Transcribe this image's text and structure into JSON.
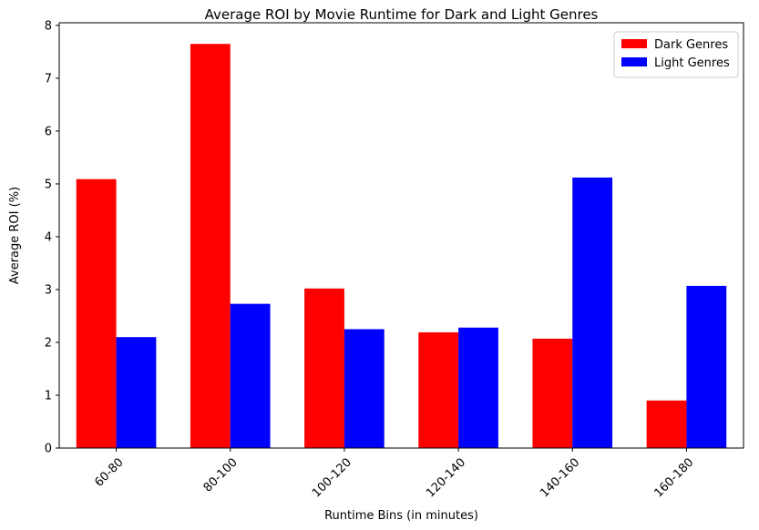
{
  "chart_data": {
    "type": "bar",
    "title": "Average ROI by Movie Runtime for Dark and Light Genres",
    "xlabel": "Runtime Bins (in minutes)",
    "ylabel": "Average ROI (%)",
    "categories": [
      "60-80",
      "80-100",
      "100-120",
      "120-140",
      "140-160",
      "160-180"
    ],
    "series": [
      {
        "name": "Dark Genres",
        "color": "#ff0000",
        "values": [
          5.09,
          7.65,
          3.02,
          2.19,
          2.07,
          0.9
        ]
      },
      {
        "name": "Light Genres",
        "color": "#0000ff",
        "values": [
          2.1,
          2.73,
          2.25,
          2.28,
          5.12,
          3.07
        ]
      }
    ],
    "ylim": [
      0,
      8.05
    ],
    "yticks": [
      0,
      1,
      2,
      3,
      4,
      5,
      6,
      7,
      8
    ],
    "xtick_rotation": 45,
    "grid": false,
    "legend_position": "top-right"
  }
}
